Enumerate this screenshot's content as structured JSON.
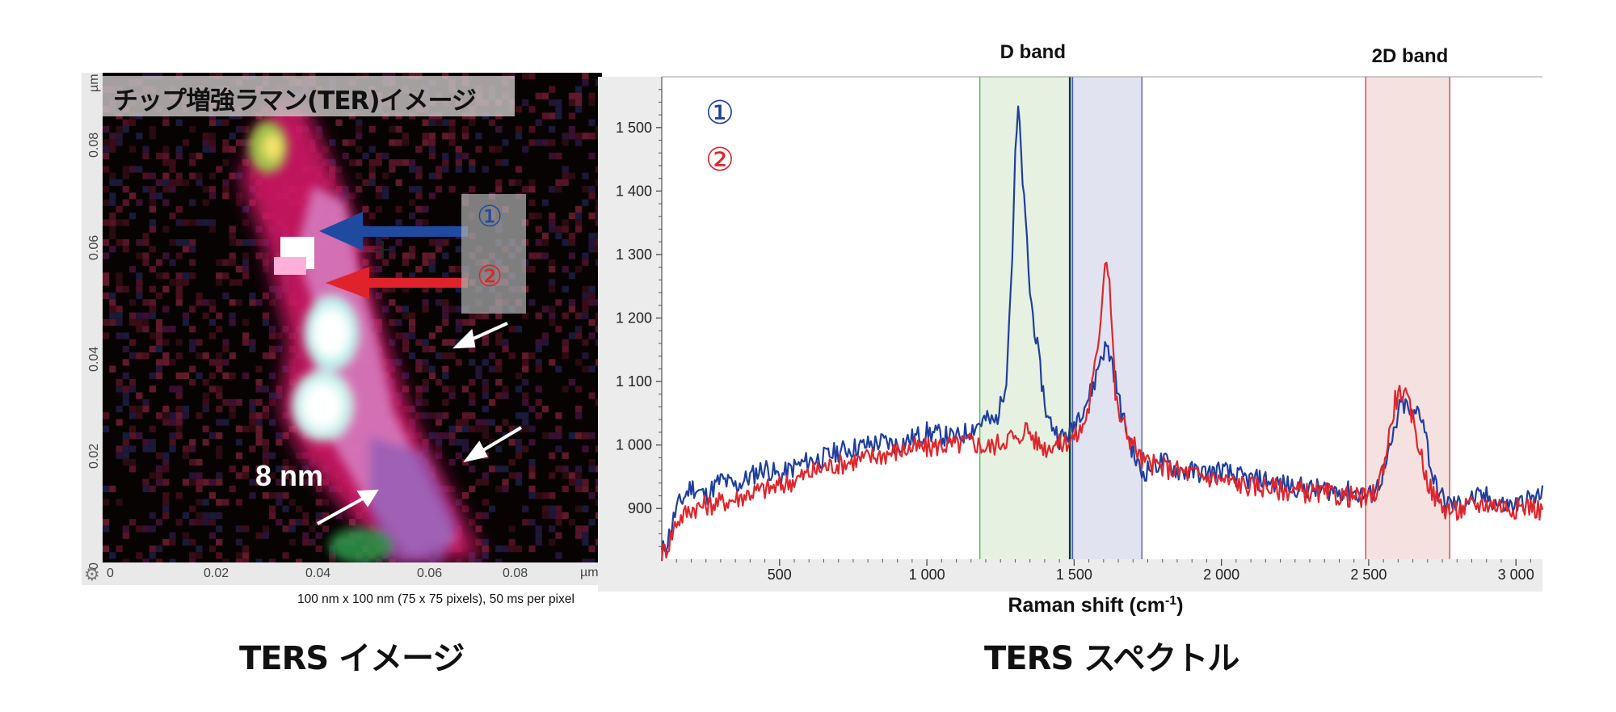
{
  "image_panel": {
    "map_title": "チップ増強ラマン(TER)イメージ",
    "marker_1": "①",
    "marker_2": "②",
    "scale_label": "8 nm",
    "x_ticks": [
      "0",
      "0.02",
      "0.04",
      "0.06",
      "0.08"
    ],
    "y_ticks": [
      "0",
      "0.02",
      "0.04",
      "0.06",
      "0.08"
    ],
    "x_unit": "µm",
    "y_unit": "µm",
    "settings_icon": "gear-icon",
    "caption": "100 nm x 100 nm (75 x 75 pixels), 50 ms per pixel",
    "panel_title": "TERS イメージ"
  },
  "spectrum_panel": {
    "panel_title": "TERS スペクトル"
  },
  "colors": {
    "series_1": "#1f3f9e",
    "series_2": "#e0262c",
    "d_band": "#e6f1e1",
    "d_band_edge": "#4ab859",
    "g_band": "#e2e3f1",
    "g_band_edge": "#4a57a8",
    "band_2d": "#f6e1e1",
    "band_2d_edge": "#c43c45"
  },
  "chart_data": {
    "type": "line",
    "xlabel": "Raman shift (cm-1)",
    "ylabel": "",
    "xlim": [
      100,
      3090
    ],
    "ylim": [
      820,
      1580
    ],
    "x_ticks": [
      500,
      1000,
      1500,
      2000,
      2500,
      3000
    ],
    "x_tick_labels": [
      "500",
      "1 000",
      "1 500",
      "2 000",
      "2 500",
      "3 000"
    ],
    "y_ticks": [
      900,
      1000,
      1100,
      1200,
      1300,
      1400,
      1500
    ],
    "y_tick_labels": [
      "900",
      "1 000",
      "1 100",
      "1 200",
      "1 300",
      "1 400",
      "1 500"
    ],
    "grid": false,
    "legend": [
      "①",
      "②"
    ],
    "legend_position": "top-left",
    "annotations": [
      {
        "text": "D band",
        "x": 1360
      },
      {
        "text": "2D band",
        "x": 2640
      }
    ],
    "bands": [
      {
        "name": "D band",
        "x0": 1180,
        "x1": 1490
      },
      {
        "name": "",
        "x0": 1495,
        "x1": 1730
      },
      {
        "name": "2D band",
        "x0": 2490,
        "x1": 2775
      }
    ],
    "series": [
      {
        "name": "①",
        "x": [
          100,
          120,
          150,
          200,
          250,
          300,
          350,
          400,
          450,
          500,
          550,
          600,
          650,
          700,
          750,
          800,
          850,
          900,
          950,
          1000,
          1050,
          1100,
          1150,
          1180,
          1200,
          1230,
          1250,
          1270,
          1290,
          1300,
          1310,
          1320,
          1330,
          1340,
          1350,
          1370,
          1390,
          1410,
          1430,
          1450,
          1470,
          1490,
          1510,
          1530,
          1550,
          1570,
          1590,
          1610,
          1630,
          1650,
          1670,
          1690,
          1710,
          1730,
          1760,
          1800,
          1850,
          1900,
          1950,
          2000,
          2050,
          2100,
          2150,
          2200,
          2250,
          2300,
          2350,
          2400,
          2450,
          2500,
          2530,
          2560,
          2590,
          2610,
          2630,
          2650,
          2670,
          2690,
          2710,
          2730,
          2760,
          2800,
          2850,
          2900,
          2950,
          3000,
          3050,
          3090
        ],
        "y": [
          830,
          850,
          900,
          935,
          920,
          945,
          935,
          950,
          965,
          950,
          965,
          975,
          980,
          990,
          995,
          1000,
          1005,
          1000,
          1010,
          1020,
          1015,
          1010,
          1025,
          1035,
          1040,
          1035,
          1060,
          1110,
          1300,
          1450,
          1530,
          1460,
          1380,
          1320,
          1240,
          1170,
          1100,
          1040,
          1030,
          1010,
          1015,
          1020,
          1045,
          1060,
          1075,
          1100,
          1140,
          1155,
          1130,
          1075,
          1035,
          1005,
          975,
          955,
          965,
          975,
          960,
          958,
          955,
          960,
          950,
          945,
          945,
          938,
          935,
          930,
          930,
          928,
          925,
          918,
          935,
          968,
          1025,
          1065,
          1060,
          1040,
          1060,
          1030,
          965,
          930,
          910,
          905,
          915,
          918,
          905,
          905,
          915,
          920
        ]
      },
      {
        "name": "②",
        "x": [
          100,
          120,
          150,
          200,
          250,
          300,
          350,
          400,
          450,
          500,
          550,
          600,
          650,
          700,
          750,
          800,
          850,
          900,
          950,
          1000,
          1050,
          1100,
          1150,
          1180,
          1200,
          1230,
          1250,
          1270,
          1290,
          1310,
          1330,
          1350,
          1370,
          1390,
          1410,
          1430,
          1450,
          1470,
          1490,
          1510,
          1530,
          1550,
          1570,
          1590,
          1600,
          1610,
          1620,
          1630,
          1640,
          1650,
          1670,
          1690,
          1710,
          1730,
          1760,
          1800,
          1850,
          1900,
          1950,
          2000,
          2050,
          2100,
          2150,
          2200,
          2250,
          2300,
          2350,
          2400,
          2450,
          2500,
          2530,
          2560,
          2590,
          2610,
          2630,
          2650,
          2670,
          2690,
          2710,
          2730,
          2760,
          2800,
          2850,
          2900,
          2950,
          3000,
          3050,
          3090
        ],
        "y": [
          830,
          840,
          880,
          900,
          905,
          910,
          915,
          925,
          930,
          935,
          945,
          955,
          965,
          970,
          975,
          980,
          985,
          990,
          995,
          995,
          1000,
          1000,
          1005,
          1000,
          995,
          1000,
          1005,
          1010,
          1015,
          1000,
          1030,
          1020,
          1005,
          1000,
          995,
          1005,
          1000,
          1005,
          1010,
          1015,
          1030,
          1060,
          1120,
          1200,
          1270,
          1300,
          1260,
          1170,
          1080,
          1050,
          1030,
          1010,
          995,
          975,
          970,
          965,
          960,
          955,
          950,
          945,
          940,
          935,
          935,
          930,
          928,
          925,
          923,
          920,
          918,
          915,
          930,
          990,
          1070,
          1085,
          1070,
          1040,
          1000,
          960,
          930,
          915,
          900,
          895,
          905,
          908,
          905,
          900,
          905,
          895
        ]
      }
    ]
  }
}
